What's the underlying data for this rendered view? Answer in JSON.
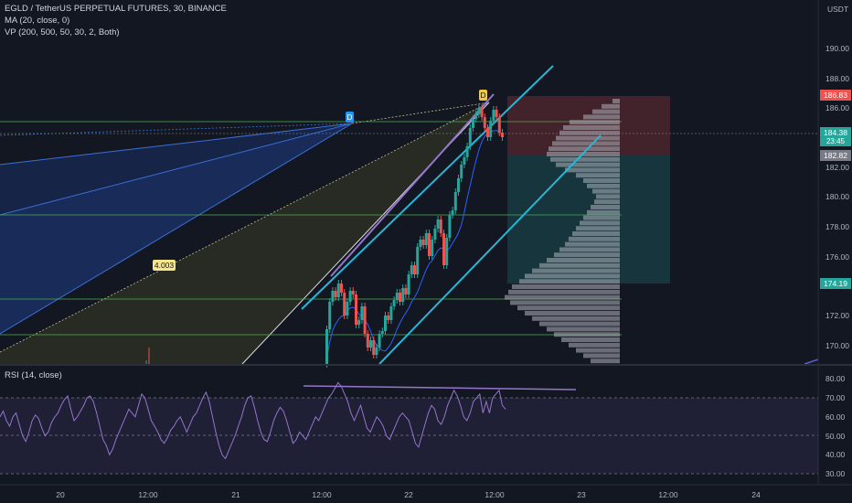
{
  "header": {
    "symbol_line": "EGLD / TetherUS PERPETUAL FUTURES, 30, BINANCE",
    "ma_line": "MA (20, close, 0)",
    "vp_line": "VP (200, 500, 50, 30, 2, Both)"
  },
  "price_axis": {
    "currency": "USDT",
    "ticks": [
      "190.00",
      "188.00",
      "186.00",
      "182.00",
      "180.00",
      "178.00",
      "176.00",
      "174.00",
      "172.00",
      "170.00"
    ],
    "labels": {
      "stop": "186.83",
      "last": "184.38",
      "countdown": "23:45",
      "entry": "182.82",
      "target": "174.19"
    }
  },
  "rsi": {
    "title": "RSI (14, close)",
    "ticks": [
      "80.00",
      "70.00",
      "60.00",
      "50.00",
      "40.00",
      "30.00"
    ],
    "values": [
      60,
      63,
      58,
      55,
      60,
      62,
      56,
      50,
      47,
      52,
      58,
      61,
      59,
      54,
      50,
      52,
      57,
      60,
      62,
      66,
      69,
      71,
      64,
      58,
      60,
      63,
      66,
      70,
      71,
      68,
      62,
      55,
      48,
      45,
      40,
      43,
      48,
      52,
      56,
      60,
      64,
      62,
      60,
      66,
      72,
      70,
      64,
      58,
      55,
      52,
      48,
      46,
      49,
      53,
      55,
      58,
      60,
      56,
      52,
      56,
      60,
      62,
      66,
      70,
      73,
      68,
      60,
      52,
      45,
      40,
      38,
      42,
      46,
      50,
      55,
      60,
      66,
      70,
      71,
      65,
      58,
      52,
      48,
      47,
      52,
      58,
      62,
      65,
      63,
      58,
      52,
      46,
      48,
      52,
      50,
      48,
      52,
      56,
      60,
      58,
      62,
      66,
      70,
      72,
      75,
      78,
      76,
      72,
      68,
      62,
      58,
      62,
      66,
      60,
      54,
      52,
      56,
      60,
      58,
      55,
      50,
      48,
      52,
      56,
      60,
      62,
      60,
      58,
      52,
      46,
      44,
      50,
      56,
      62,
      66,
      64,
      58,
      56,
      60,
      66,
      70,
      74,
      71,
      66,
      60,
      58,
      62,
      68,
      70,
      72,
      62,
      68,
      62,
      70,
      72,
      74,
      66,
      64
    ]
  },
  "time_axis": {
    "labels": [
      "20",
      "12:00",
      "21",
      "12:00",
      "22",
      "12:00",
      "23",
      "12:00",
      "24"
    ]
  },
  "annotations": {
    "ratio_label": "4.003",
    "pivot_label_1": "D",
    "pivot_label_2": "D"
  },
  "colors": {
    "background": "#131722",
    "up": "#26a69a",
    "down": "#ef5350",
    "channel": "#29b6d6",
    "rsi_line": "#9575cd",
    "hline": "#4caf50",
    "stop_zone": "#ef5350",
    "target_zone": "#26a69a"
  }
}
